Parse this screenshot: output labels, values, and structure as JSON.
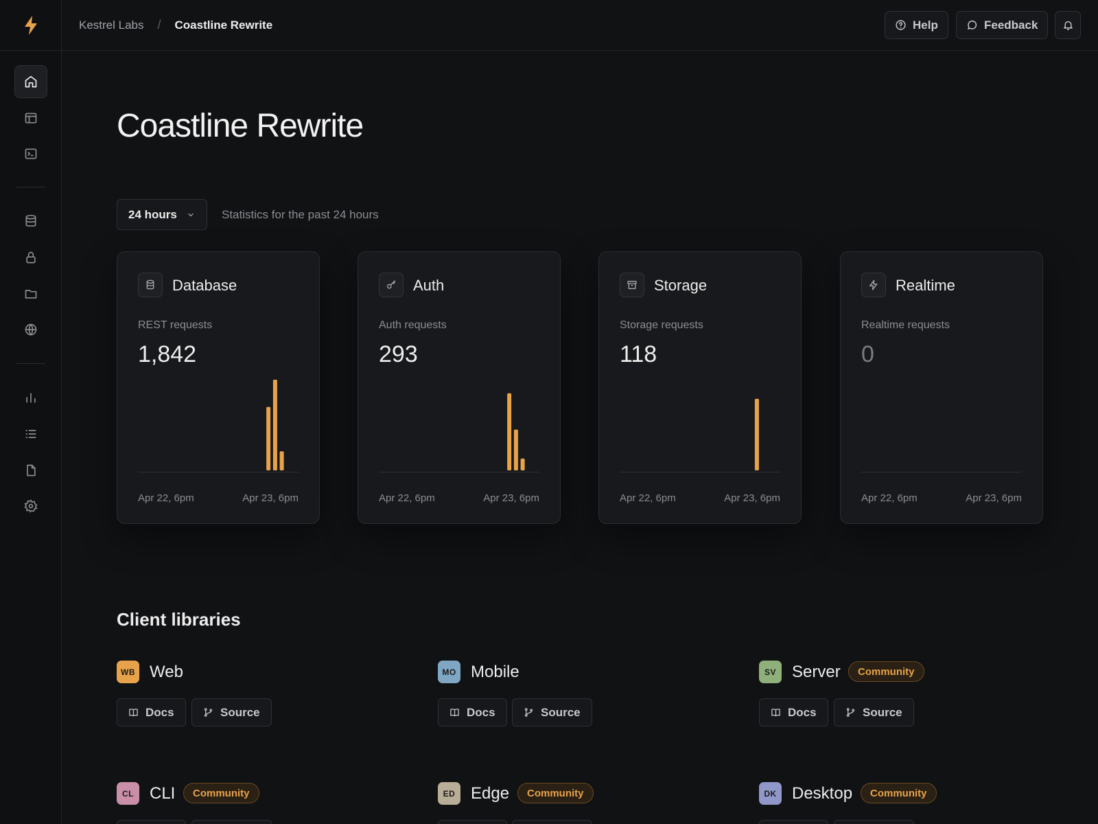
{
  "breadcrumb": {
    "org": "Kestrel Labs",
    "separator": "/",
    "project": "Coastline Rewrite"
  },
  "topbar": {
    "help_label": "Help",
    "feedback_label": "Feedback"
  },
  "page": {
    "title": "Coastline Rewrite"
  },
  "period": {
    "selected": "24 hours",
    "caption": "Statistics for the past 24 hours"
  },
  "accent_color": "#e8a34a",
  "sidebar": {
    "items": [
      {
        "icon": "home-icon",
        "active": true
      },
      {
        "icon": "table-editor-icon"
      },
      {
        "icon": "terminal-icon"
      },
      {
        "icon": "database-icon"
      },
      {
        "icon": "lock-icon"
      },
      {
        "icon": "folder-icon"
      },
      {
        "icon": "globe-icon"
      },
      {
        "icon": "bar-chart-icon"
      },
      {
        "icon": "list-icon"
      },
      {
        "icon": "file-icon"
      },
      {
        "icon": "gear-icon"
      }
    ]
  },
  "cards": [
    {
      "title": "Database",
      "icon": "database-icon",
      "label": "REST requests",
      "value": "1,842",
      "axis_start": "Apr 22, 6pm",
      "axis_end": "Apr 23, 6pm",
      "chart_data": {
        "type": "bar",
        "bars": [
          {
            "slot": 19,
            "value": 0.7
          },
          {
            "slot": 20,
            "value": 1.0
          },
          {
            "slot": 21,
            "value": 0.21
          }
        ]
      }
    },
    {
      "title": "Auth",
      "icon": "key-icon",
      "label": "Auth requests",
      "value": "293",
      "axis_start": "Apr 22, 6pm",
      "axis_end": "Apr 23, 6pm",
      "chart_data": {
        "type": "bar",
        "bars": [
          {
            "slot": 19,
            "value": 0.85
          },
          {
            "slot": 20,
            "value": 0.45
          },
          {
            "slot": 21,
            "value": 0.13
          }
        ]
      }
    },
    {
      "title": "Storage",
      "icon": "archive-icon",
      "label": "Storage requests",
      "value": "118",
      "axis_start": "Apr 22, 6pm",
      "axis_end": "Apr 23, 6pm",
      "chart_data": {
        "type": "bar",
        "bars": [
          {
            "slot": 20,
            "value": 0.79
          }
        ]
      }
    },
    {
      "title": "Realtime",
      "icon": "bolt-icon",
      "label": "Realtime requests",
      "value": "0",
      "axis_start": "Apr 22, 6pm",
      "axis_end": "Apr 23, 6pm",
      "chart_data": {
        "type": "bar",
        "bars": []
      }
    }
  ],
  "client_libraries": {
    "title": "Client libraries",
    "docs_label": "Docs",
    "source_label": "Source",
    "items": [
      {
        "abbr": "WB",
        "name": "Web",
        "community": false,
        "color": "#e8a34a"
      },
      {
        "abbr": "MO",
        "name": "Mobile",
        "community": false,
        "color": "#7fa7c4"
      },
      {
        "abbr": "SV",
        "name": "Server",
        "community": true,
        "color": "#8fb07a"
      },
      {
        "abbr": "CL",
        "name": "CLI",
        "community": true,
        "color": "#c98fa8"
      },
      {
        "abbr": "ED",
        "name": "Edge",
        "community": true,
        "color": "#b8ad96"
      },
      {
        "abbr": "DK",
        "name": "Desktop",
        "community": true,
        "color": "#8f98c9"
      }
    ],
    "community_label": "Community"
  }
}
